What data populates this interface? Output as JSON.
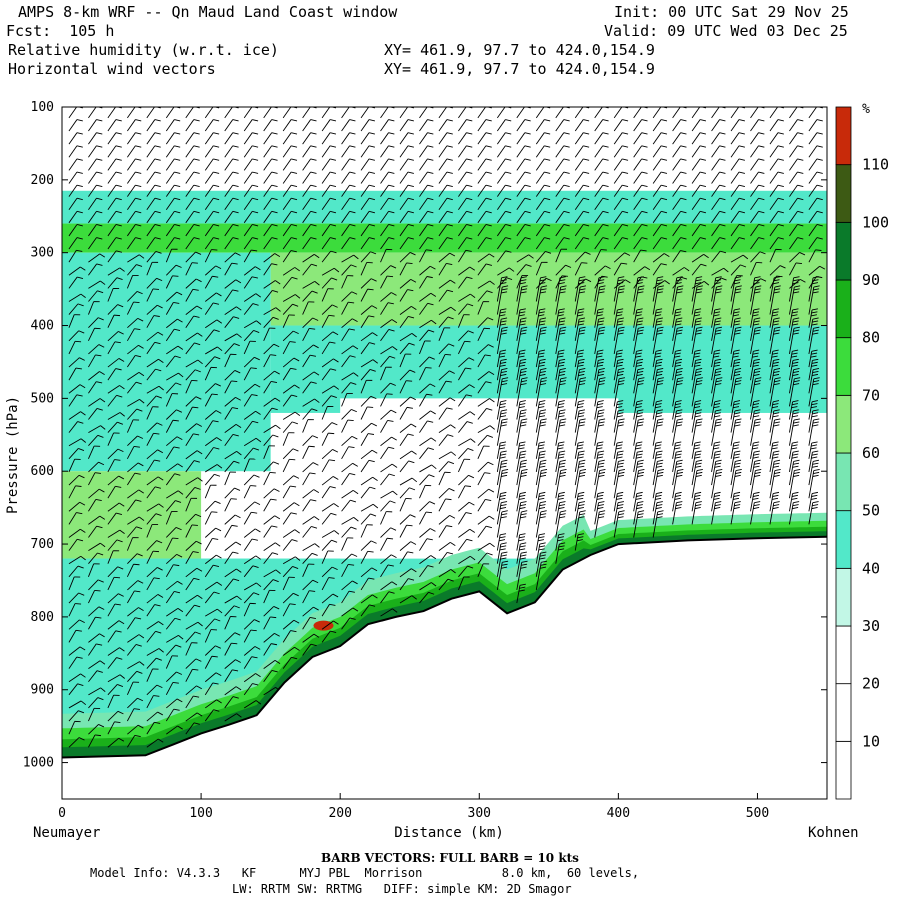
{
  "header": {
    "title": "AMPS 8-km WRF -- Qn Maud Land Coast window",
    "init": "Init: 00 UTC Sat 29 Nov 25",
    "fcst": "Fcst:  105 h",
    "valid": "Valid: 09 UTC Wed 03 Dec 25",
    "field1": "Relative humidity (w.r.t. ice)",
    "xy1": "XY= 461.9, 97.7 to 424.0,154.9",
    "field2": "Horizontal wind vectors",
    "xy2": "XY= 461.9, 97.7 to 424.0,154.9"
  },
  "footer": {
    "barb_note": "BARB VECTORS:  FULL BARB = 10 kts",
    "model_line1": "Model Info: V4.3.3   KF      MYJ PBL  Morrison           8.0 km,  60 levels,",
    "model_line2": "LW: RRTM SW: RRTMG   DIFF: simple KM: 2D Smagor"
  },
  "chart_data": {
    "type": "heatmap",
    "title": "Relative humidity (w.r.t. ice)",
    "overlay": "Horizontal wind vectors (barbs)",
    "xlabel": "Distance (km)",
    "ylabel": "Pressure (hPa)",
    "x_start_label": "Neumayer",
    "x_end_label": "Kohnen",
    "xlim": [
      0,
      550
    ],
    "ylim": [
      1050,
      100
    ],
    "x_ticks": [
      0,
      100,
      200,
      300,
      400,
      500
    ],
    "y_ticks": [
      100,
      200,
      300,
      400,
      500,
      600,
      700,
      800,
      900,
      1000
    ],
    "colorbar": {
      "unit": "%",
      "ticks": [
        10,
        20,
        30,
        40,
        50,
        60,
        70,
        80,
        90,
        100,
        110
      ],
      "colors": [
        "#ffffff",
        "#ffffff",
        "#ffffff",
        "#c2f7e6",
        "#52e8c9",
        "#78e6b2",
        "#8ce87a",
        "#3cdc3c",
        "#1ab01a",
        "#0a7a2a",
        "#3d5a14",
        "#c82a0a"
      ]
    },
    "terrain_surface_hpa": [
      [
        0,
        993
      ],
      [
        20,
        992
      ],
      [
        40,
        991
      ],
      [
        60,
        990
      ],
      [
        80,
        975
      ],
      [
        100,
        960
      ],
      [
        120,
        948
      ],
      [
        140,
        935
      ],
      [
        160,
        890
      ],
      [
        180,
        855
      ],
      [
        200,
        840
      ],
      [
        220,
        810
      ],
      [
        240,
        800
      ],
      [
        260,
        792
      ],
      [
        280,
        775
      ],
      [
        300,
        765
      ],
      [
        320,
        795
      ],
      [
        340,
        780
      ],
      [
        360,
        735
      ],
      [
        380,
        715
      ],
      [
        400,
        700
      ],
      [
        450,
        695
      ],
      [
        500,
        692
      ],
      [
        550,
        690
      ]
    ],
    "rh_field_km_hpa_pct": [
      {
        "x_range": [
          0,
          550
        ],
        "p_range": [
          100,
          215
        ],
        "rh": 10
      },
      {
        "x_range": [
          0,
          550
        ],
        "p_range": [
          215,
          260
        ],
        "rh": 40
      },
      {
        "x_range": [
          0,
          550
        ],
        "p_range": [
          260,
          300
        ],
        "rh": 70
      },
      {
        "x_range": [
          150,
          550
        ],
        "p_range": [
          300,
          400
        ],
        "rh": 65
      },
      {
        "x_range": [
          0,
          150
        ],
        "p_range": [
          300,
          600
        ],
        "rh": 45
      },
      {
        "x_range": [
          150,
          550
        ],
        "p_range": [
          400,
          520
        ],
        "rh": 45
      },
      {
        "x_range": [
          200,
          400
        ],
        "p_range": [
          500,
          700
        ],
        "rh": 15
      },
      {
        "x_range": [
          0,
          100
        ],
        "p_range": [
          600,
          720
        ],
        "rh": 65
      },
      {
        "x_range": [
          0,
          200
        ],
        "p_range": [
          720,
          960
        ],
        "rh": 45
      },
      {
        "x_range": [
          0,
          550
        ],
        "p_range": [
          720,
          780
        ],
        "rh": 45
      }
    ],
    "wind_barbs": "dense field of barbs, westerly upper levels, strong northerly near slope"
  }
}
